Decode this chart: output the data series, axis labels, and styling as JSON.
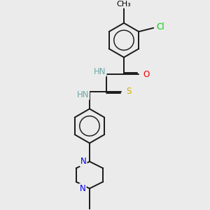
{
  "background_color": "#ebebeb",
  "atom_colors": {
    "N": "#0000ee",
    "O": "#ee0000",
    "S": "#ccaa00",
    "Cl": "#00cc00",
    "HN": "#6fa8a8",
    "C": "#000000"
  },
  "bond_color": "#1a1a1a",
  "bond_width": 1.4,
  "figsize": [
    3.0,
    3.0
  ],
  "dpi": 100,
  "bg": "#ebebeb"
}
